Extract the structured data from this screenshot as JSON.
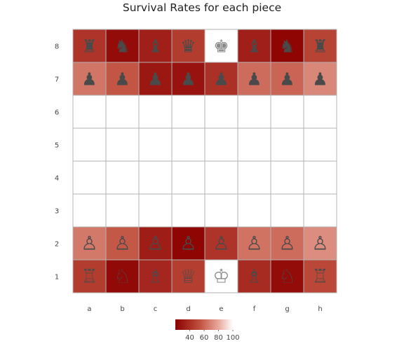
{
  "chart_data": {
    "type": "heatmap",
    "title": "Survival Rates for each piece",
    "xlabel": "",
    "ylabel": "",
    "files": [
      "a",
      "b",
      "c",
      "d",
      "e",
      "f",
      "g",
      "h"
    ],
    "ranks": [
      "1",
      "2",
      "3",
      "4",
      "5",
      "6",
      "7",
      "8"
    ],
    "value_range": [
      20,
      100
    ],
    "colorscale": [
      "#8b0000",
      "#c0503e",
      "#e8a89c",
      "#ffffff"
    ],
    "colorbar": {
      "ticks": [
        40,
        60,
        80,
        100
      ],
      "placement": "bottom-center"
    },
    "rows": [
      {
        "rank": "8",
        "color": "black",
        "pieces": [
          "rook",
          "knight",
          "bishop",
          "queen",
          "king",
          "bishop",
          "knight",
          "rook"
        ],
        "values": [
          42,
          25,
          33,
          45,
          100,
          33,
          22,
          48
        ]
      },
      {
        "rank": "7",
        "color": "black",
        "pieces": [
          "pawn",
          "pawn",
          "pawn",
          "pawn",
          "pawn",
          "pawn",
          "pawn",
          "pawn"
        ],
        "values": [
          65,
          55,
          30,
          28,
          40,
          62,
          60,
          70
        ]
      },
      {
        "rank": "2",
        "color": "white",
        "pieces": [
          "pawn",
          "pawn",
          "pawn",
          "pawn",
          "pawn",
          "pawn",
          "pawn",
          "pawn"
        ],
        "values": [
          66,
          56,
          32,
          22,
          42,
          64,
          62,
          72
        ]
      },
      {
        "rank": "1",
        "color": "white",
        "pieces": [
          "rook",
          "knight",
          "bishop",
          "queen",
          "king",
          "bishop",
          "knight",
          "rook"
        ],
        "values": [
          45,
          24,
          36,
          46,
          100,
          38,
          25,
          50
        ]
      }
    ]
  },
  "icons": {
    "white": {
      "king": "♔",
      "queen": "♕",
      "rook": "♖",
      "bishop": "♗",
      "knight": "♘",
      "pawn": "♙"
    },
    "black": {
      "king": "♚",
      "queen": "♛",
      "rook": "♜",
      "bishop": "♝",
      "knight": "♞",
      "pawn": "♟"
    }
  },
  "colors": {
    "grid": "#b3b3b3",
    "piece": "#4a4a4a",
    "piece_on_white": "#8a8a8a"
  }
}
